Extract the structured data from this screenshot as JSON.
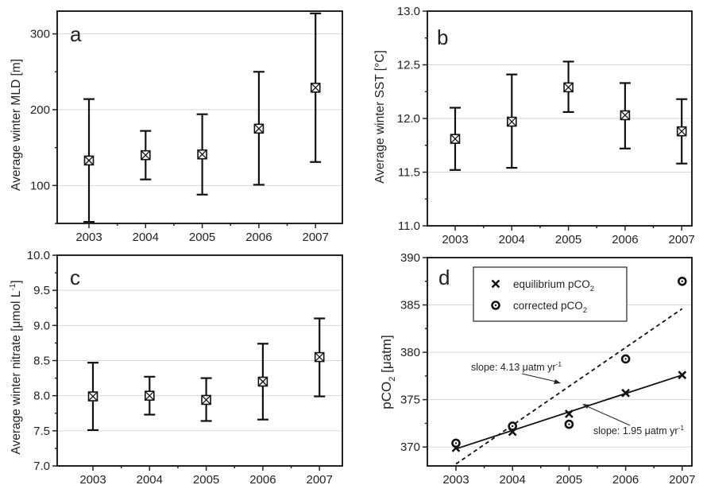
{
  "chart_data": [
    {
      "panel": "a",
      "type": "scatter",
      "categories": [
        "2003",
        "2004",
        "2005",
        "2006",
        "2007"
      ],
      "ylabel": "Average winter MLD [m]",
      "ylim": [
        50,
        330
      ],
      "yticks": [
        100,
        200,
        300
      ],
      "grid": true,
      "series": [
        {
          "values": [
            133,
            140,
            141,
            175,
            229
          ],
          "err_low": [
            52,
            108,
            88,
            101,
            131
          ],
          "err_high": [
            214,
            172,
            194,
            250,
            327
          ]
        }
      ]
    },
    {
      "panel": "b",
      "type": "scatter",
      "categories": [
        "2003",
        "2004",
        "2005",
        "2006",
        "2007"
      ],
      "ylabel": "Average winter SST [°C]",
      "ylim": [
        11.0,
        13.0
      ],
      "yticks": [
        "11.0",
        "11.5",
        "12.0",
        "12.5",
        "13.0"
      ],
      "grid": true,
      "series": [
        {
          "values": [
            11.81,
            11.97,
            12.29,
            12.03,
            11.88
          ],
          "err_low": [
            11.52,
            11.54,
            12.06,
            11.72,
            11.58
          ],
          "err_high": [
            12.1,
            12.41,
            12.53,
            12.33,
            12.18
          ]
        }
      ]
    },
    {
      "panel": "c",
      "type": "scatter",
      "categories": [
        "2003",
        "2004",
        "2005",
        "2006",
        "2007"
      ],
      "ylabel_main": "Average winter nitrate [μmol L",
      "ylabel_sup": "-1",
      "ylabel_end": "]",
      "ylim": [
        7.0,
        10.0
      ],
      "yticks": [
        "7.0",
        "7.5",
        "8.0",
        "8.5",
        "9.0",
        "9.5",
        "10.0"
      ],
      "grid": true,
      "series": [
        {
          "values": [
            7.99,
            8.0,
            7.94,
            8.2,
            8.55
          ],
          "err_low": [
            7.51,
            7.73,
            7.64,
            7.66,
            7.99
          ],
          "err_high": [
            8.47,
            8.27,
            8.25,
            8.74,
            9.1
          ]
        }
      ]
    },
    {
      "panel": "d",
      "type": "scatter",
      "categories": [
        "2003",
        "2004",
        "2005",
        "2006",
        "2007"
      ],
      "ylabel_main": "pCO",
      "ylabel_sub": "2",
      "ylabel_end": " [μatm]",
      "ylim": [
        368,
        390
      ],
      "yticks": [
        370,
        375,
        380,
        385,
        390
      ],
      "grid": true,
      "legend": "top-left",
      "series": [
        {
          "name_main": "equilibrium pCO",
          "name_sub": "2",
          "marker": "x",
          "values": [
            369.9,
            371.6,
            373.5,
            375.7,
            377.6
          ],
          "fit": {
            "slope": 1.95,
            "at_2003": 369.8,
            "at_2007": 377.6,
            "style": "solid"
          }
        },
        {
          "name_main": "corrected pCO",
          "name_sub": "2",
          "marker": "o",
          "values": [
            370.4,
            372.2,
            372.4,
            379.3,
            387.5
          ],
          "fit": {
            "slope": 4.13,
            "at_2003": 368.2,
            "at_2007": 384.6,
            "style": "dashed"
          }
        }
      ],
      "annotations": [
        {
          "text_main": "slope: 4.13 μatm yr",
          "text_sup": "-1"
        },
        {
          "text_main": "slope: 1.95 μatm yr",
          "text_sup": "-1"
        }
      ]
    }
  ]
}
